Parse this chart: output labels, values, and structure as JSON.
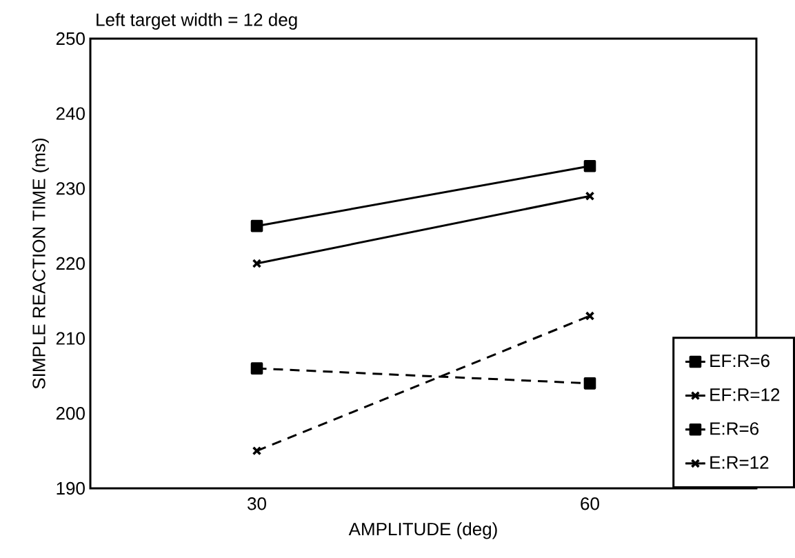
{
  "chart_data": {
    "type": "line",
    "title": "Left target width = 12 deg",
    "xlabel": "AMPLITUDE (deg)",
    "ylabel": "SIMPLE REACTION TIME (ms)",
    "x": [
      30,
      60
    ],
    "xlim": [
      15,
      75
    ],
    "ylim": [
      190,
      250
    ],
    "xticks": [
      30,
      60
    ],
    "yticks": [
      190,
      200,
      210,
      220,
      230,
      240,
      250
    ],
    "legend": "bottom right",
    "series": [
      {
        "name": "EF:R=6",
        "color": "#000000",
        "marker": "square",
        "line_style": "solid",
        "values": [
          225,
          233
        ]
      },
      {
        "name": "EF:R=12",
        "color": "#000000",
        "marker": "cross",
        "line_style": "solid",
        "values": [
          220,
          229
        ]
      },
      {
        "name": "E:R=6",
        "color": "#000000",
        "marker": "square",
        "line_style": "dashed",
        "values": [
          206,
          204
        ]
      },
      {
        "name": "E:R=12",
        "color": "#000000",
        "marker": "cross",
        "line_style": "dashed",
        "values": [
          195,
          213
        ]
      }
    ]
  }
}
